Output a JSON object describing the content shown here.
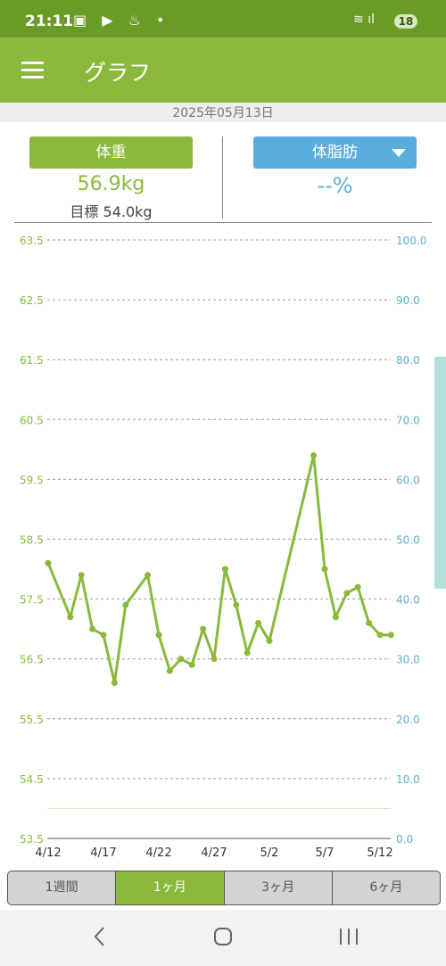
{
  "status": {
    "time": "21:11",
    "battery": "18",
    "icons_left": [
      "gallery-icon",
      "youtube-icon",
      "notification-icon",
      "dot-icon"
    ],
    "icons_right": [
      "wifi-icon",
      "signal-icon"
    ]
  },
  "app_bar": {
    "title": "グラフ"
  },
  "date": "2025年05月13日",
  "weight": {
    "label": "体重",
    "value": "56.9kg",
    "target": "目標 54.0kg"
  },
  "body_fat": {
    "label": "体脂肪",
    "value": "--%"
  },
  "tabs": [
    {
      "label": "1週間",
      "active": false
    },
    {
      "label": "1ヶ月",
      "active": true
    },
    {
      "label": "3ヶ月",
      "active": false
    },
    {
      "label": "6ヶ月",
      "active": false
    }
  ],
  "colors": {
    "primary": "#8ab93c",
    "status_bar": "#6a9b27",
    "secondary": "#5aaedb",
    "target_line": "#e8e0b8"
  },
  "chart_data": {
    "type": "line",
    "x_tick_labels": [
      "4/12",
      "4/17",
      "4/22",
      "4/27",
      "5/2",
      "5/7",
      "5/12"
    ],
    "y_left": {
      "ticks": [
        "63.5",
        "62.5",
        "61.5",
        "60.5",
        "59.5",
        "58.5",
        "57.5",
        "56.5",
        "55.5",
        "54.5",
        "53.5"
      ],
      "ylim": [
        53.5,
        63.5
      ]
    },
    "y_right": {
      "ticks": [
        "100.0",
        "90.0",
        "80.0",
        "70.0",
        "60.0",
        "50.0",
        "40.0",
        "30.0",
        "20.0",
        "10.0",
        "0.0"
      ],
      "ylim": [
        0,
        100
      ]
    },
    "grid": true,
    "target_line": 54.0,
    "series": [
      {
        "points": [
          [
            "4/12",
            58.1
          ],
          [
            "4/14",
            57.2
          ],
          [
            "4/15",
            57.9
          ],
          [
            "4/16",
            57.0
          ],
          [
            "4/17",
            56.9
          ],
          [
            "4/18",
            56.1
          ],
          [
            "4/19",
            57.4
          ],
          [
            "4/21",
            57.9
          ],
          [
            "4/22",
            56.9
          ],
          [
            "4/23",
            56.3
          ],
          [
            "4/24",
            56.5
          ],
          [
            "4/25",
            56.4
          ],
          [
            "4/26",
            57.0
          ],
          [
            "4/27",
            56.5
          ],
          [
            "4/28",
            58.0
          ],
          [
            "4/29",
            57.4
          ],
          [
            "4/30",
            56.6
          ],
          [
            "5/1",
            57.1
          ],
          [
            "5/2",
            56.8
          ],
          [
            "5/6",
            59.9
          ],
          [
            "5/7",
            58.0
          ],
          [
            "5/8",
            57.2
          ],
          [
            "5/9",
            57.6
          ],
          [
            "5/10",
            57.7
          ],
          [
            "5/11",
            57.1
          ],
          [
            "5/12",
            56.9
          ],
          [
            "5/13",
            56.9
          ]
        ]
      }
    ]
  }
}
